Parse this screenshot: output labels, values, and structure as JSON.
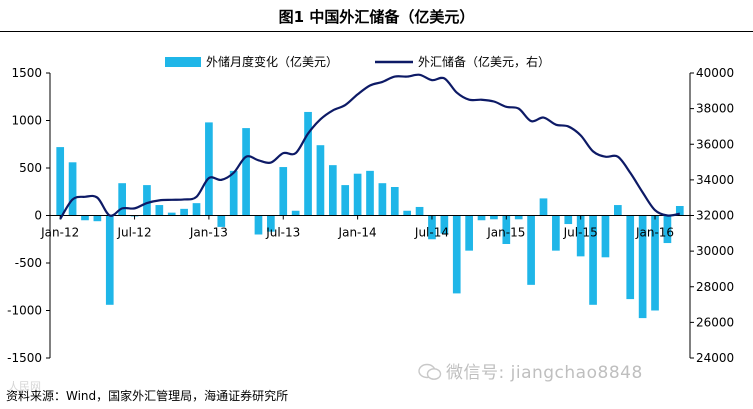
{
  "title": "图1   中国外汇储备（亿美元）",
  "source": "资料来源：Wind，国家外汇管理局，海通证券研究所",
  "watermark": "微信号: jiangchao8848",
  "corner_mark": "人民网",
  "colors": {
    "bar": "#1fb6e8",
    "line": "#0d1a66",
    "axis": "#000000"
  },
  "chart_data": {
    "type": "bar+line",
    "x_labels": [
      "Jan-12",
      "Jul-12",
      "Jan-13",
      "Jul-13",
      "Jan-14",
      "Jul-14",
      "Jan-15",
      "Jul-15",
      "Jan-16"
    ],
    "months": [
      "2012-01",
      "2012-02",
      "2012-03",
      "2012-04",
      "2012-05",
      "2012-06",
      "2012-07",
      "2012-08",
      "2012-09",
      "2012-10",
      "2012-11",
      "2012-12",
      "2013-01",
      "2013-02",
      "2013-03",
      "2013-04",
      "2013-05",
      "2013-06",
      "2013-07",
      "2013-08",
      "2013-09",
      "2013-10",
      "2013-11",
      "2013-12",
      "2014-01",
      "2014-02",
      "2014-03",
      "2014-04",
      "2014-05",
      "2014-06",
      "2014-07",
      "2014-08",
      "2014-09",
      "2014-10",
      "2014-11",
      "2014-12",
      "2015-01",
      "2015-02",
      "2015-03",
      "2015-04",
      "2015-05",
      "2015-06",
      "2015-07",
      "2015-08",
      "2015-09",
      "2015-10",
      "2015-11",
      "2015-12",
      "2016-01",
      "2016-02",
      "2016-03"
    ],
    "left_axis": {
      "ylim": [
        -1500,
        1500
      ],
      "ticks": [
        -1500,
        -1000,
        -500,
        0,
        500,
        1000,
        1500
      ]
    },
    "right_axis": {
      "ylim": [
        24000,
        40000
      ],
      "ticks": [
        24000,
        26000,
        28000,
        30000,
        32000,
        34000,
        36000,
        38000,
        40000
      ]
    },
    "series": [
      {
        "name": "外储月度变化（亿美元）",
        "type": "bar",
        "axis": "left",
        "values": [
          720,
          560,
          -50,
          -60,
          -940,
          340,
          -10,
          320,
          110,
          30,
          70,
          130,
          980,
          -120,
          470,
          920,
          -200,
          -170,
          510,
          50,
          1090,
          740,
          530,
          320,
          440,
          470,
          340,
          300,
          50,
          90,
          -250,
          -190,
          -820,
          -370,
          -50,
          -40,
          -300,
          -40,
          -730,
          180,
          -370,
          -90,
          -430,
          -940,
          -440,
          110,
          -880,
          -1080,
          -1000,
          -290,
          100
        ]
      },
      {
        "name": "外汇储备（亿美元，右）",
        "type": "line",
        "axis": "right",
        "values": [
          31800,
          32900,
          33050,
          33000,
          32000,
          32400,
          32400,
          32700,
          32850,
          32880,
          32900,
          33050,
          34100,
          34000,
          34400,
          35300,
          35100,
          34970,
          35500,
          35500,
          36600,
          37400,
          37900,
          38200,
          38800,
          39300,
          39500,
          39800,
          39800,
          39900,
          39600,
          39700,
          38900,
          38500,
          38500,
          38400,
          38100,
          38000,
          37300,
          37500,
          37100,
          37000,
          36500,
          35600,
          35300,
          35300,
          34400,
          33300,
          32300,
          32000,
          32100
        ]
      }
    ]
  }
}
